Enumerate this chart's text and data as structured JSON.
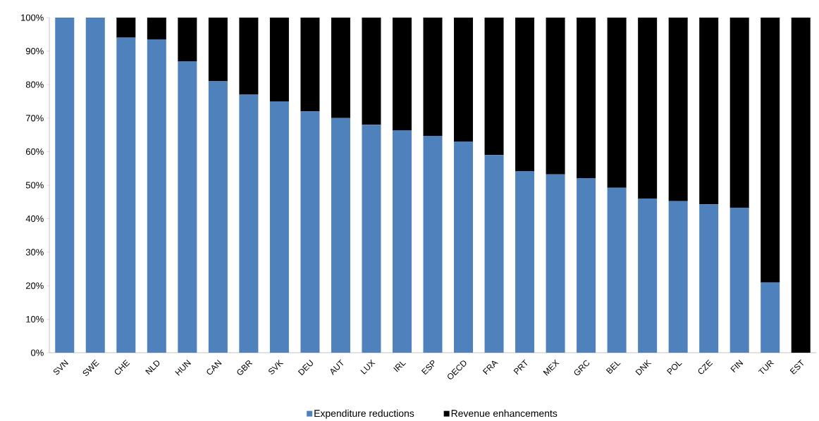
{
  "chart_data": {
    "type": "bar",
    "stacked": true,
    "categories": [
      "SVN",
      "SWE",
      "CHE",
      "NLD",
      "HUN",
      "CAN",
      "GBR",
      "SVK",
      "DEU",
      "AUT",
      "LUX",
      "IRL",
      "ESP",
      "OECD",
      "FRA",
      "PRT",
      "MEX",
      "GRC",
      "BEL",
      "DNK",
      "POL",
      "CZE",
      "FIN",
      "TUR",
      "EST"
    ],
    "series": [
      {
        "name": "Expenditure reductions",
        "color": "#4f81bd",
        "values": [
          100,
          100,
          94,
          93.5,
          87,
          81,
          77,
          75,
          72,
          70,
          68,
          66.4,
          64.7,
          63,
          59,
          54.2,
          53.2,
          52.1,
          49.2,
          46,
          45.2,
          44.3,
          43.3,
          21,
          0
        ]
      },
      {
        "name": "Revenue enhancements",
        "color": "#000000",
        "values": [
          0,
          0,
          6,
          6.5,
          13,
          19,
          23,
          25,
          28,
          30,
          32,
          33.6,
          35.3,
          37,
          41,
          45.8,
          46.8,
          47.9,
          50.8,
          54,
          54.8,
          55.7,
          56.7,
          79,
          100
        ]
      }
    ],
    "ylim": [
      0,
      100
    ],
    "yticks": [
      {
        "value": 0,
        "label": "0%"
      },
      {
        "value": 10,
        "label": "10%"
      },
      {
        "value": 20,
        "label": "20%"
      },
      {
        "value": 30,
        "label": "30%"
      },
      {
        "value": 40,
        "label": "40%"
      },
      {
        "value": 50,
        "label": "50%"
      },
      {
        "value": 60,
        "label": "60%"
      },
      {
        "value": 70,
        "label": "70%"
      },
      {
        "value": 80,
        "label": "80%"
      },
      {
        "value": 90,
        "label": "90%"
      },
      {
        "value": 100,
        "label": "100%"
      }
    ],
    "grid": false,
    "legend": "bottom"
  }
}
